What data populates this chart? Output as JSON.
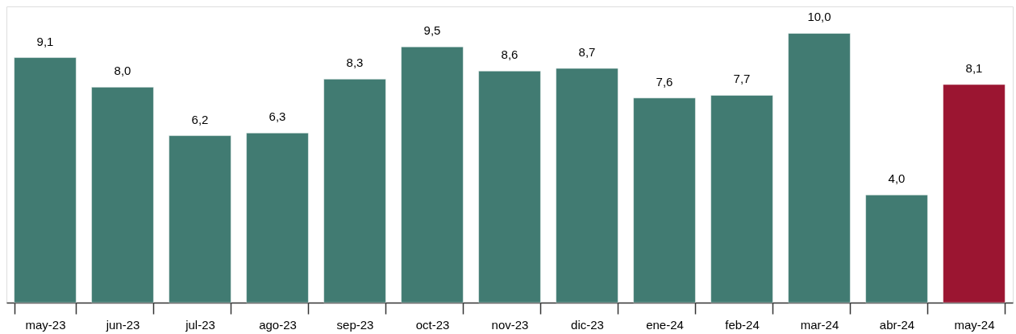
{
  "chart_data": {
    "type": "bar",
    "categories": [
      "may-23",
      "jun-23",
      "jul-23",
      "ago-23",
      "sep-23",
      "oct-23",
      "nov-23",
      "dic-23",
      "ene-24",
      "feb-24",
      "mar-24",
      "abr-24",
      "may-24"
    ],
    "values": [
      9.1,
      8.0,
      6.2,
      6.3,
      8.3,
      9.5,
      8.6,
      8.7,
      7.6,
      7.7,
      10.0,
      4.0,
      8.1
    ],
    "value_labels": [
      "9,1",
      "8,0",
      "6,2",
      "6,3",
      "8,3",
      "9,5",
      "8,6",
      "8,7",
      "7,6",
      "7,7",
      "10,0",
      "4,0",
      "8,1"
    ],
    "colors": [
      "#417b72",
      "#417b72",
      "#417b72",
      "#417b72",
      "#417b72",
      "#417b72",
      "#417b72",
      "#417b72",
      "#417b72",
      "#417b72",
      "#417b72",
      "#417b72",
      "#9b1531"
    ],
    "grid": false
  }
}
